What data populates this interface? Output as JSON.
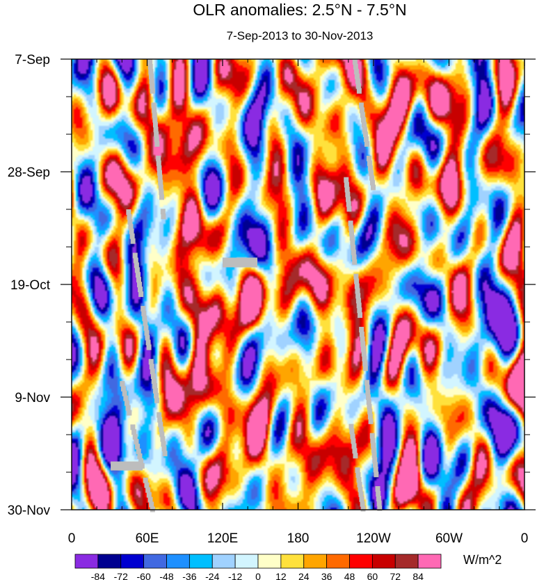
{
  "chart_data": {
    "type": "heatmap",
    "title": "OLR anomalies: 2.5°N - 7.5°N",
    "subtitle": "7-Sep-2013 to 30-Nov-2013",
    "xlabel": "",
    "ylabel": "",
    "x_ticks": [
      "0",
      "60E",
      "120E",
      "180",
      "120W",
      "60W",
      "0"
    ],
    "x_tick_values": [
      0,
      60,
      120,
      180,
      240,
      300,
      360
    ],
    "y_ticks": [
      "7-Sep",
      "28-Sep",
      "19-Oct",
      "9-Nov",
      "30-Nov"
    ],
    "y_tick_day_offsets": [
      0,
      21,
      42,
      63,
      84
    ],
    "xlim": [
      0,
      360
    ],
    "ylim_days": [
      0,
      84
    ],
    "colorbar": {
      "unit_label": "W/m^2",
      "levels": [
        -84,
        -72,
        -60,
        -48,
        -36,
        -24,
        -12,
        0,
        12,
        24,
        36,
        48,
        60,
        72,
        84
      ],
      "level_labels": [
        "-84",
        "-72",
        "-60",
        "-48",
        "-36",
        "-24",
        "-12",
        "0",
        "12",
        "24",
        "36",
        "48",
        "60",
        "72",
        "84"
      ],
      "colors": [
        "#8a2be2",
        "#000090",
        "#0000d0",
        "#4169e1",
        "#1e90ff",
        "#00bfff",
        "#a0d2ff",
        "#d2f5ff",
        "#ffffc8",
        "#ffe13c",
        "#ffa500",
        "#ff6a00",
        "#ff0000",
        "#c80000",
        "#a52a2a",
        "#ff69b4"
      ]
    },
    "missing_color": "#bdbdbd",
    "features": [
      {
        "type": "ridge",
        "lon": 75,
        "day": 15,
        "lon_width": 10,
        "day_width": 6,
        "value": 75
      },
      {
        "type": "ridge",
        "lon": 130,
        "day": 50,
        "lon_width": 14,
        "day_width": 8,
        "value": 55
      },
      {
        "type": "ridge",
        "lon": 100,
        "day": 48,
        "lon_width": 6,
        "day_width": 10,
        "value": 60
      },
      {
        "type": "ridge",
        "lon": 145,
        "day": 70,
        "lon_width": 20,
        "day_width": 8,
        "value": 50
      },
      {
        "type": "ridge",
        "lon": 210,
        "day": 40,
        "lon_width": 40,
        "day_width": 30,
        "value": 25
      },
      {
        "type": "ridge",
        "lon": 240,
        "day": 10,
        "lon_width": 30,
        "day_width": 10,
        "value": 30
      },
      {
        "type": "trough",
        "lon": 130,
        "day": 30,
        "lon_width": 10,
        "day_width": 6,
        "value": -65
      },
      {
        "type": "trough",
        "lon": 140,
        "day": 62,
        "lon_width": 24,
        "day_width": 4,
        "value": -60
      },
      {
        "type": "trough",
        "lon": 45,
        "day": 62,
        "lon_width": 10,
        "day_width": 5,
        "value": -55
      },
      {
        "type": "trough",
        "lon": 325,
        "day": 52,
        "lon_width": 12,
        "day_width": 6,
        "value": -50
      },
      {
        "type": "trough",
        "lon": 55,
        "day": 42,
        "lon_width": 8,
        "day_width": 6,
        "value": -55
      },
      {
        "type": "trough",
        "lon": 115,
        "day": 82,
        "lon_width": 16,
        "day_width": 4,
        "value": -50
      }
    ]
  }
}
